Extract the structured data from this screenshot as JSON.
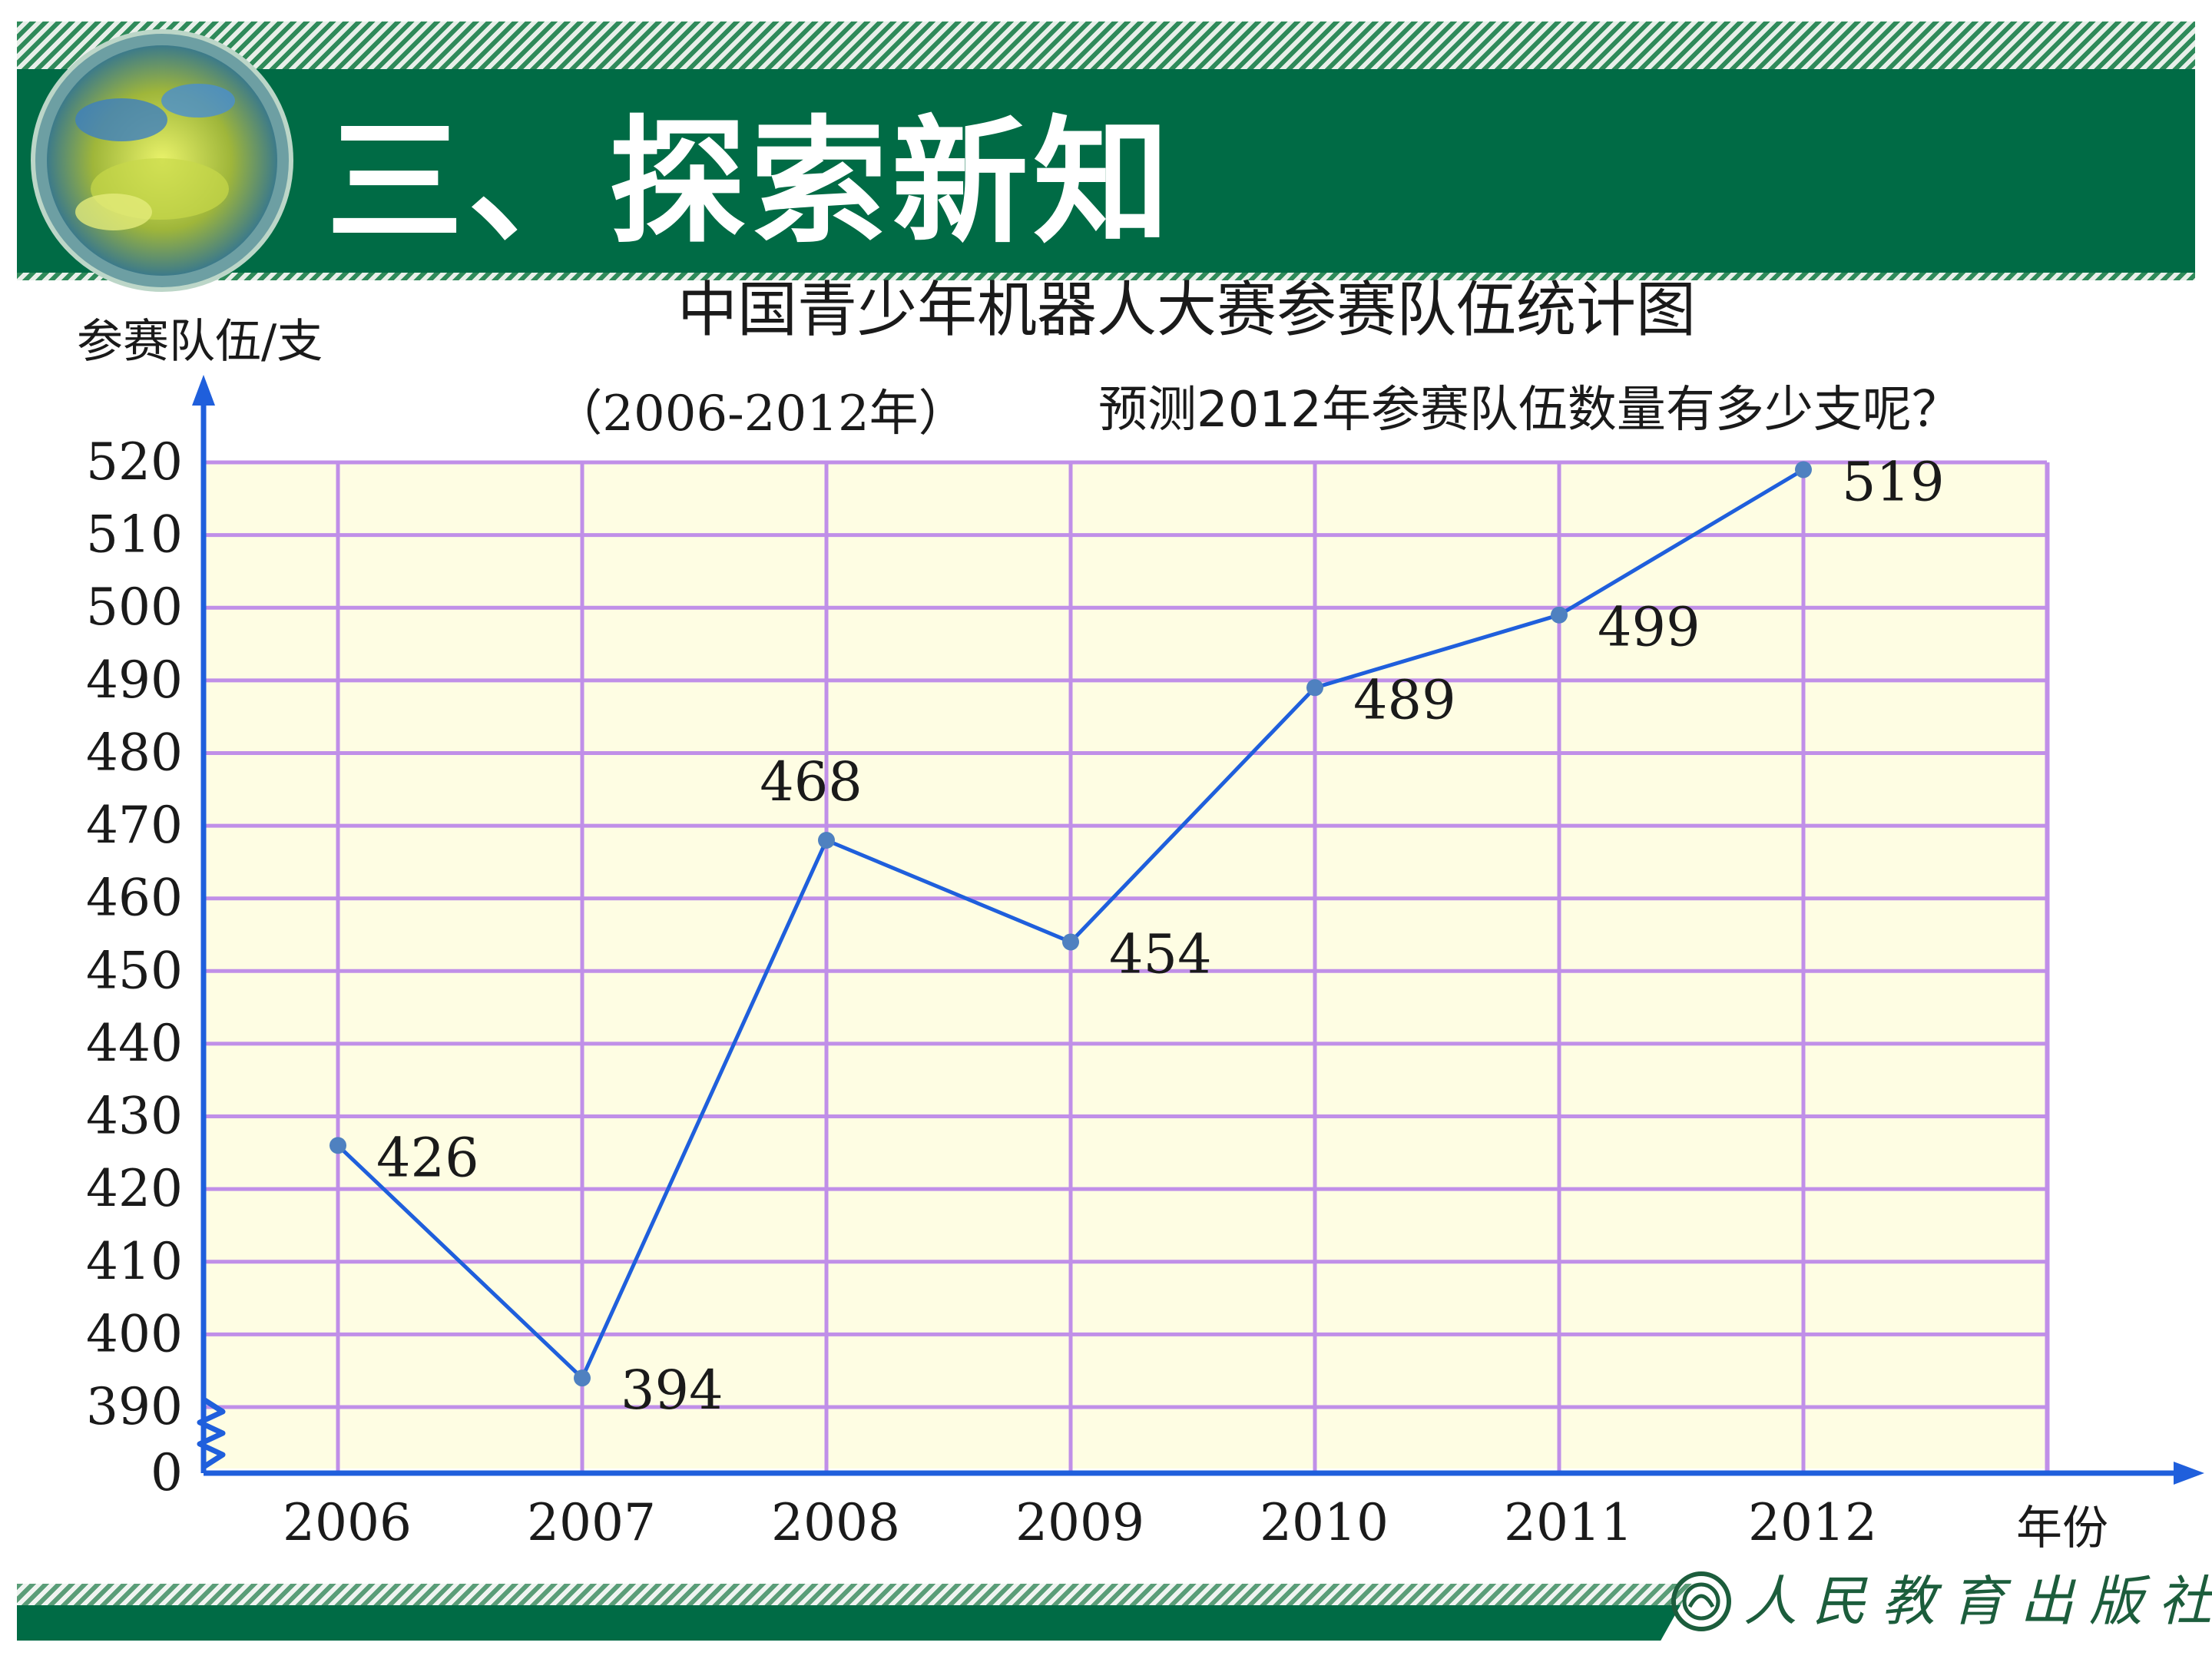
{
  "header": {
    "title": "三、探索新知"
  },
  "question": "预测2012年参赛队伍数量有多少支呢？",
  "publisher": "人民教育出版社",
  "colors": {
    "header_green": "#006b45",
    "plot_background": "#fefde3",
    "grid": "#c08fe8",
    "line": "#1f5fdc",
    "point": "#4f81c0",
    "axis": "#1f5fdc"
  },
  "chart_data": {
    "type": "line",
    "title": "中国青少年机器人大赛参赛队伍统计图",
    "subtitle": "（2006-2012年）",
    "ylabel": "参赛队伍/支",
    "xlabel": "年份",
    "categories": [
      "2006",
      "2007",
      "2008",
      "2009",
      "2010",
      "2011",
      "2012"
    ],
    "values": [
      426,
      394,
      468,
      454,
      489,
      499,
      519
    ],
    "ylim": [
      390,
      520
    ],
    "y_ticks": [
      0,
      390,
      400,
      410,
      420,
      430,
      440,
      450,
      460,
      470,
      480,
      490,
      500,
      510,
      520
    ],
    "y_axis_break": true,
    "grid": true,
    "data_labels": true
  }
}
